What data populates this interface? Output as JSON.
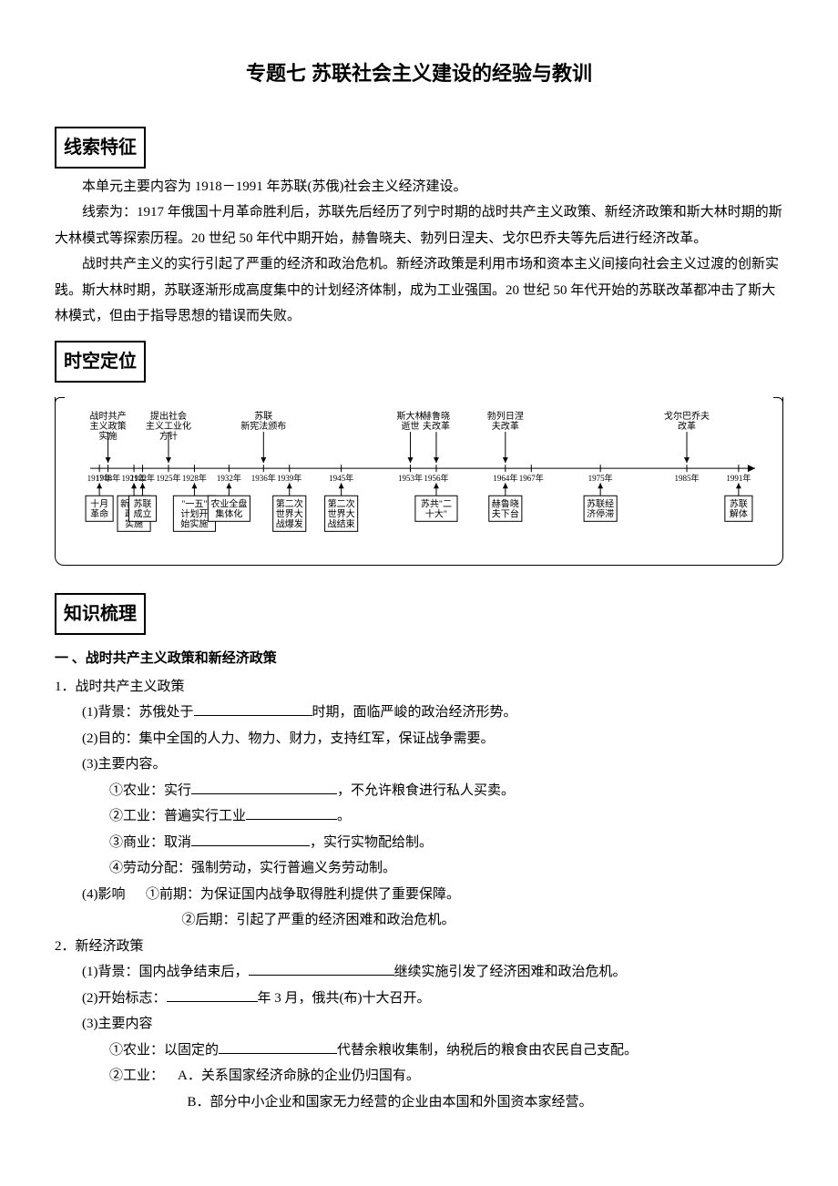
{
  "title": "专题七 苏联社会主义建设的经验与教训",
  "sections": {
    "s1": "线索特征",
    "s2": "时空定位",
    "s3": "知识梳理"
  },
  "intro": {
    "p1": "本单元主要内容为 1918－1991 年苏联(苏俄)社会主义经济建设。",
    "p2": "线索为：1917 年俄国十月革命胜利后，苏联先后经历了列宁时期的战时共产主义政策、新经济政策和斯大林时期的斯大林模式等探索历程。20 世纪 50 年代中期开始，赫鲁晓夫、勃列日涅夫、戈尔巴乔夫等先后进行经济改革。",
    "p3": "战时共产主义的实行引起了严重的经济和政治危机。新经济政策是利用市场和资本主义间接向社会主义过渡的创新实践。斯大林时期，苏联逐渐形成高度集中的计划经济体制，成为工业强国。20 世纪 50 年代开始的苏联改革都冲击了斯大林模式，但由于指导思想的错误而失败。"
  },
  "timeline": {
    "axis_y": 66,
    "x_range": [
      40,
      740
    ],
    "year_range": [
      1917,
      1991
    ],
    "years": [
      1917,
      1918,
      1921,
      1922,
      1925,
      1928,
      1932,
      1936,
      1939,
      1945,
      1953,
      1956,
      1964,
      1967,
      1975,
      1985,
      1991
    ],
    "top_events": [
      {
        "year": 1918,
        "lines": [
          "战时共产",
          "主义政策",
          "实施"
        ]
      },
      {
        "year": 1925,
        "lines": [
          "提出社会",
          "主义工业化",
          "方针"
        ]
      },
      {
        "year": 1936,
        "lines": [
          "苏联",
          "新宪法颁布"
        ]
      },
      {
        "year": 1953,
        "lines": [
          "斯大林",
          "逝世"
        ]
      },
      {
        "year": 1956,
        "lines": [
          "赫鲁晓",
          "夫改革"
        ]
      },
      {
        "year": 1964,
        "lines": [
          "勃列日涅",
          "夫改革"
        ]
      },
      {
        "year": 1985,
        "lines": [
          "戈尔巴乔夫",
          "改革"
        ]
      }
    ],
    "bottom_events": [
      {
        "year": 1917,
        "lines": [
          "十月",
          "革命"
        ]
      },
      {
        "year": 1921,
        "lines": [
          "新经济",
          "政策",
          "实施"
        ]
      },
      {
        "year": 1922,
        "lines": [
          "苏联",
          "成立"
        ]
      },
      {
        "year": 1928,
        "lines": [
          "\"一五\"",
          "计划开",
          "始实施"
        ]
      },
      {
        "year": 1932,
        "lines": [
          "农业全盘",
          "集体化"
        ]
      },
      {
        "year": 1939,
        "lines": [
          "第二次",
          "世界大",
          "战爆发"
        ]
      },
      {
        "year": 1945,
        "lines": [
          "第二次",
          "世界大",
          "战结束"
        ]
      },
      {
        "year": 1956,
        "lines": [
          "苏共\"二",
          "十大\""
        ]
      },
      {
        "year": 1964,
        "lines": [
          "赫鲁晓",
          "夫下台"
        ]
      },
      {
        "year": 1975,
        "lines": [
          "苏联经",
          "济停滞"
        ]
      },
      {
        "year": 1991,
        "lines": [
          "苏联",
          "解体"
        ]
      }
    ]
  },
  "outline": {
    "sectA": "一 、战时共产主义政策和新经济政策",
    "a1": "1．战时共产主义政策",
    "a1_1a": "(1)背景：苏俄处于",
    "a1_1b": "时期，面临严峻的政治经济形势。",
    "a1_2": "(2)目的：集中全国的人力、物力、财力，支持红军，保证战争需要。",
    "a1_3": "(3)主要内容。",
    "a1_3_1a": "①农业：实行",
    "a1_3_1b": "，不允许粮食进行私人买卖。",
    "a1_3_2a": "②工业：普遍实行工业",
    "a1_3_2b": "。",
    "a1_3_3a": "③商业：取消",
    "a1_3_3b": "，实行实物配给制。",
    "a1_3_4": "④劳动分配：强制劳动，实行普遍义务劳动制。",
    "a1_4": "(4)影响",
    "a1_4_1": "①前期：为保证国内战争取得胜利提供了重要保障。",
    "a1_4_2": "②后期：引起了严重的经济困难和政治危机。",
    "a2": "2．新经济政策",
    "a2_1a": "(1)背景：国内战争结束后，",
    "a2_1b": "继续实施引发了经济困难和政治危机。",
    "a2_2a": "(2)开始标志：",
    "a2_2b": "年 3 月，俄共(布)十大召开。",
    "a2_3": "(3)主要内容",
    "a2_3_1a": "①农业：以固定的",
    "a2_3_1b": "代替余粮收集制，纳税后的粮食由农民自己支配。",
    "a2_3_2": "②工业：",
    "a2_3_2A": "A．关系国家经济命脉的企业仍归国有。",
    "a2_3_2B": "B．部分中小企业和国家无力经营的企业由本国和外国资本家经营。"
  }
}
